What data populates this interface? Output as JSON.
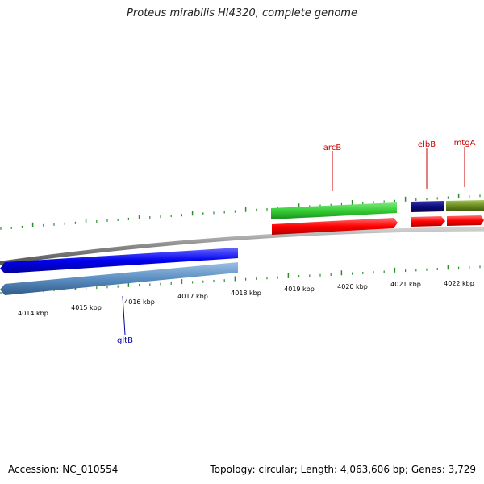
{
  "title": "Proteus mirabilis HI4320, complete genome",
  "footer": {
    "accession": "Accession: NC_010554",
    "summary": "Topology: circular; Length: 4,063,606 bp; Genes: 3,729"
  },
  "scale": {
    "ticks": [
      "4014 kbp",
      "4015 kbp",
      "4016 kbp",
      "4017 kbp",
      "4018 kbp",
      "4019 kbp",
      "4020 kbp",
      "4021 kbp",
      "4022 kbp"
    ]
  },
  "genes": {
    "arcB": "arcB",
    "elbB": "elbB",
    "mtgA": "mtgA",
    "gltB": "gltB"
  },
  "colors": {
    "forward_feature": "#33cc33",
    "forward_cds": "#ff0000",
    "reverse_feature": "#0000ee",
    "reverse_cds": "#5b8fc2",
    "elbB_feature": "#0a0a7a",
    "mtgA_feature": "#6b8c1e",
    "backbone": "#888888",
    "tick": "#2e8b2e",
    "label_forward": "#cc0000",
    "label_reverse": "#0000aa"
  }
}
